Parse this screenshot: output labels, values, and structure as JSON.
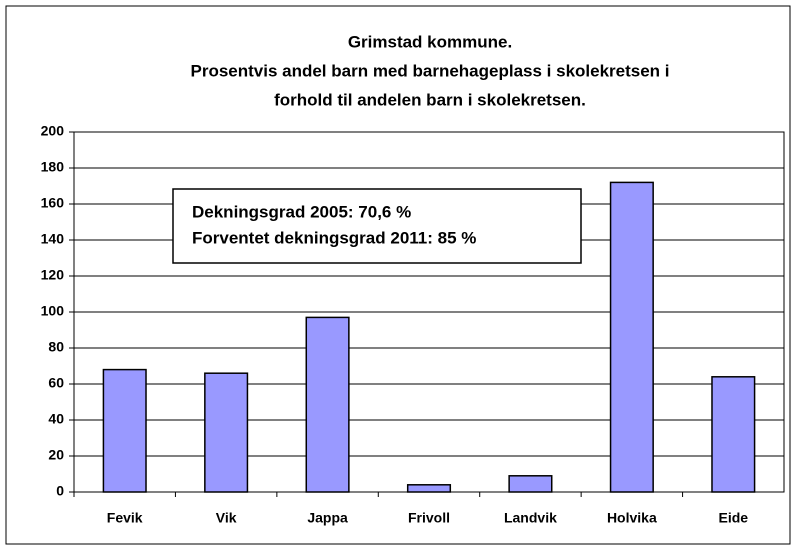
{
  "chart_data": {
    "type": "bar",
    "title": [
      "Grimstad kommune.",
      "Prosentvis andel barn med barnehageplass i skolekretsen i",
      "forhold til andelen barn i skolekretsen."
    ],
    "annotation": [
      "Dekningsgrad 2005: 70,6 %",
      "Forventet dekningsgrad 2011: 85 %"
    ],
    "categories": [
      "Fevik",
      "Vik",
      "Jappa",
      "Frivoll",
      "Landvik",
      "Holvika",
      "Eide"
    ],
    "values": [
      68,
      66,
      97,
      4,
      9,
      172,
      64
    ],
    "color": "#9999ff",
    "ylim": [
      0,
      200
    ],
    "yticks": [
      0,
      20,
      40,
      60,
      80,
      100,
      120,
      140,
      160,
      180,
      200
    ],
    "grid": true
  }
}
